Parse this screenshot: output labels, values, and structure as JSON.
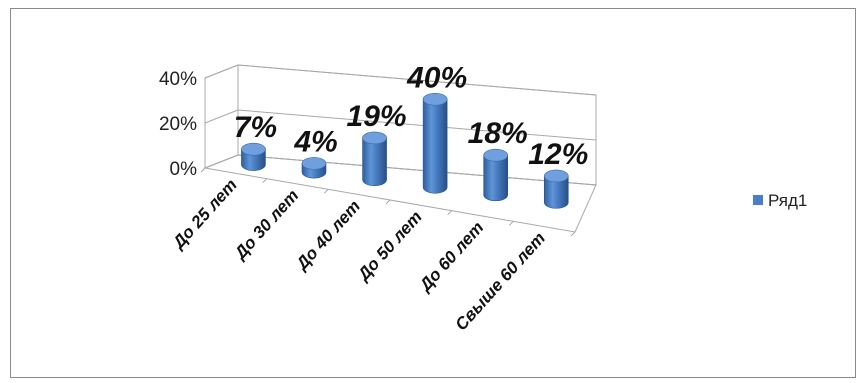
{
  "chart_data": {
    "type": "bar",
    "style": "3d-cylinder",
    "categories": [
      "До 25 лет",
      "До 30 лет",
      "До 40 лет",
      "До 50 лет",
      "До 60 лет",
      "Свыше 60 лет"
    ],
    "series": [
      {
        "name": "Ряд1",
        "values": [
          7,
          4,
          19,
          40,
          18,
          12
        ],
        "color": "#4a7ec4"
      }
    ],
    "data_labels": [
      "7%",
      "4%",
      "19%",
      "40%",
      "18%",
      "12%"
    ],
    "y_ticks": [
      "0%",
      "20%",
      "40%"
    ],
    "ylim": [
      0,
      40
    ],
    "grid": true,
    "legend_position": "right"
  }
}
